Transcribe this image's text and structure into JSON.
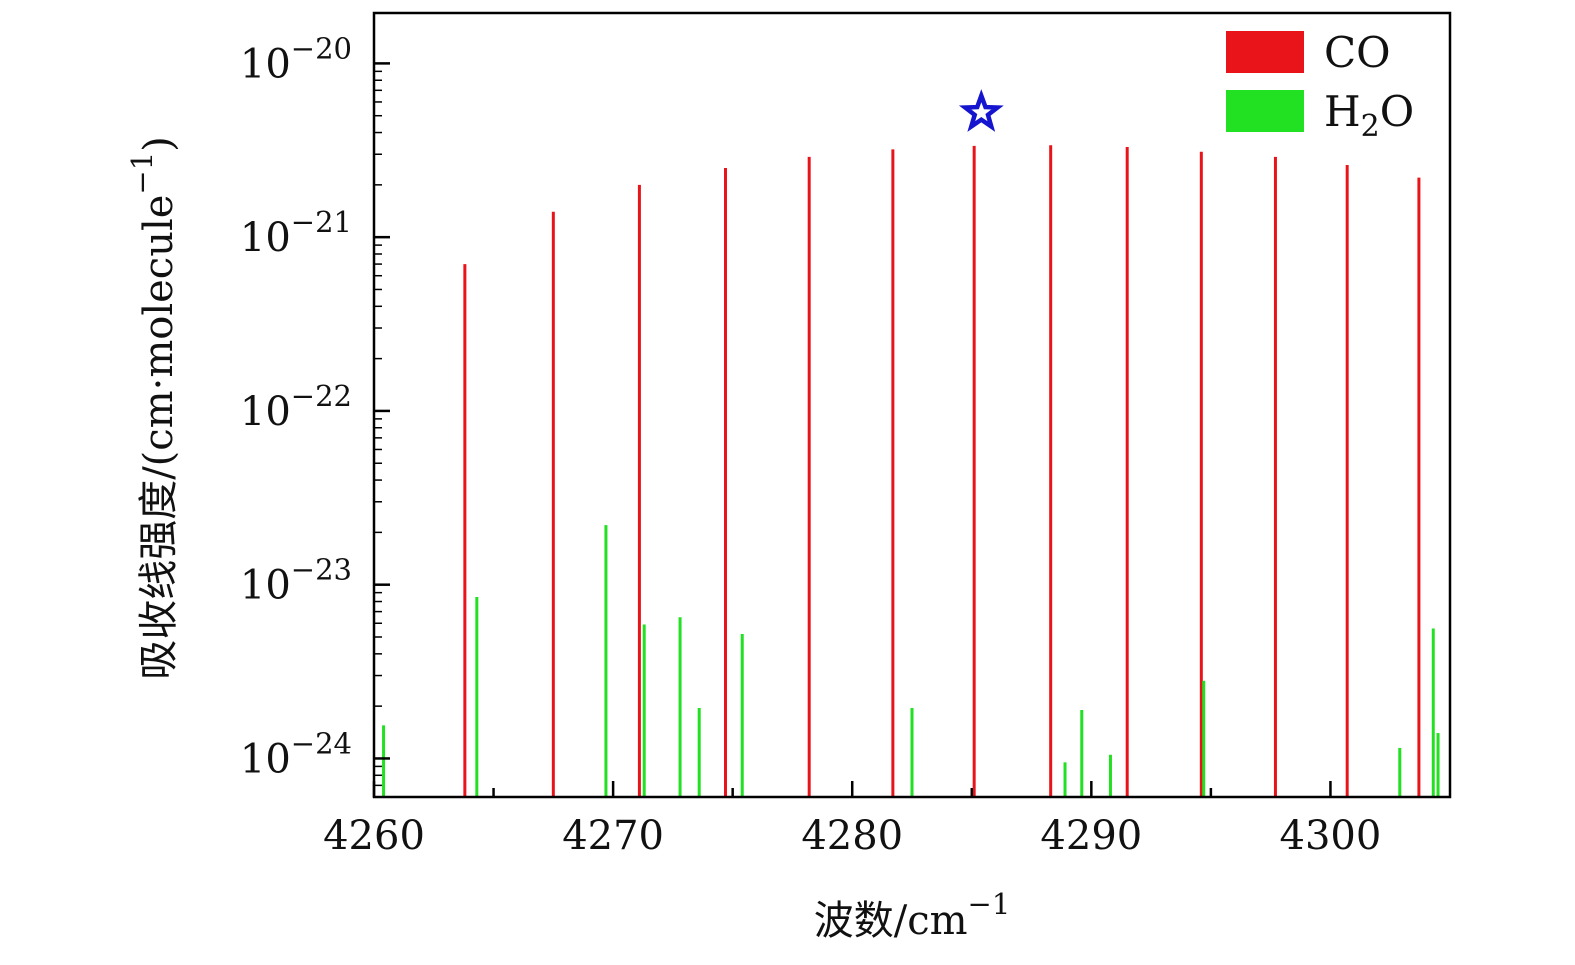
{
  "chart_data": {
    "type": "bar",
    "scale": {
      "x": "linear",
      "y": "log"
    },
    "xlim": [
      4260,
      4305
    ],
    "ylim": [
      6e-25,
      1.95e-20
    ],
    "xlabel": {
      "text": "波数/cm",
      "sup": "−1"
    },
    "ylabel": {
      "text": "吸收线强度/(cm·molecule",
      "sup": "−1",
      "tail": ")"
    },
    "x_ticks": [
      {
        "value": 4260,
        "label": "4260"
      },
      {
        "value": 4270,
        "label": "4270"
      },
      {
        "value": 4280,
        "label": "4280"
      },
      {
        "value": 4290,
        "label": "4290"
      },
      {
        "value": 4300,
        "label": "4300"
      }
    ],
    "x_minor_ticks": [
      4265,
      4275,
      4285,
      4295
    ],
    "y_ticks": [
      {
        "value": 1e-20,
        "base": "10",
        "exp": "−20"
      },
      {
        "value": 1e-21,
        "base": "10",
        "exp": "−21"
      },
      {
        "value": 1e-22,
        "base": "10",
        "exp": "−22"
      },
      {
        "value": 1e-23,
        "base": "10",
        "exp": "−23"
      },
      {
        "value": 1e-24,
        "base": "10",
        "exp": "−24"
      }
    ],
    "legend": {
      "position": "top-right"
    },
    "series": [
      {
        "name": "CO",
        "legend_label": "CO",
        "color": "#e8141a",
        "x": [
          4263.8,
          4267.5,
          4271.1,
          4274.7,
          4278.2,
          4281.7,
          4285.1,
          4288.3,
          4291.5,
          4294.6,
          4297.7,
          4300.7,
          4303.7
        ],
        "values": [
          7e-22,
          1.4e-21,
          2e-21,
          2.5e-21,
          2.9e-21,
          3.2e-21,
          3.35e-21,
          3.38e-21,
          3.3e-21,
          3.1e-21,
          2.9e-21,
          2.6e-21,
          2.2e-21
        ]
      },
      {
        "name": "H2O",
        "legend_label": {
          "base": "H",
          "sub": "2",
          "tail": "O"
        },
        "color": "#22e022",
        "x": [
          4260.4,
          4264.3,
          4269.7,
          4271.3,
          4272.8,
          4273.6,
          4275.4,
          4282.5,
          4288.9,
          4289.6,
          4290.8,
          4294.7,
          4302.9,
          4304.3,
          4304.5
        ],
        "values": [
          1.55e-24,
          8.5e-24,
          2.2e-23,
          5.9e-24,
          6.5e-24,
          1.95e-24,
          5.2e-24,
          1.95e-24,
          9.5e-25,
          1.9e-24,
          1.05e-24,
          2.8e-24,
          1.15e-24,
          5.6e-24,
          1.4e-24
        ]
      }
    ],
    "annotations": [
      {
        "type": "star",
        "x": 4285.4,
        "y": 5.2e-21,
        "color": "#1515d0"
      }
    ]
  }
}
